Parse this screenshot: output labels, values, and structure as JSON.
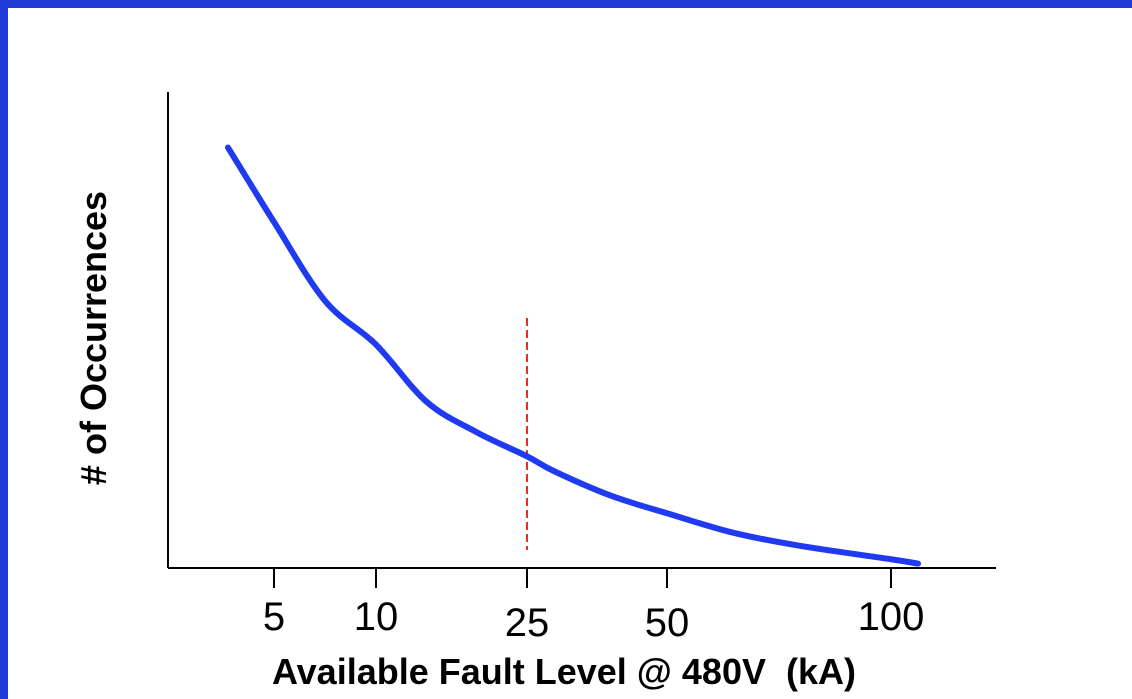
{
  "chart_data": {
    "type": "line",
    "title": "",
    "xlabel": "Available Fault Level @ 480V  (kA)",
    "ylabel": "# of Occurrences",
    "x_ticks": [
      {
        "value": 5,
        "label": "5"
      },
      {
        "value": 10,
        "label": "10"
      },
      {
        "value": 25,
        "label": "25"
      },
      {
        "value": 50,
        "label": "50"
      },
      {
        "value": 100,
        "label": "100"
      }
    ],
    "reference_line": {
      "x": 25,
      "style": "dashed"
    },
    "series": [
      {
        "x": [
          3.4,
          5,
          7.5,
          10,
          15,
          20,
          25,
          30,
          40,
          50,
          65,
          80,
          100,
          105
        ],
        "y": [
          0.96,
          0.79,
          0.61,
          0.51,
          0.38,
          0.31,
          0.255,
          0.22,
          0.165,
          0.125,
          0.08,
          0.05,
          0.02,
          0.01
        ]
      }
    ],
    "ylim": [
      0,
      1
    ],
    "y_ticks_shown": false,
    "grid": false,
    "legend": "none",
    "colors": {
      "curve": "#1f3af0",
      "reference_line": "#e0302a",
      "axis": "#000000",
      "frame": "#1f3ad6"
    }
  }
}
